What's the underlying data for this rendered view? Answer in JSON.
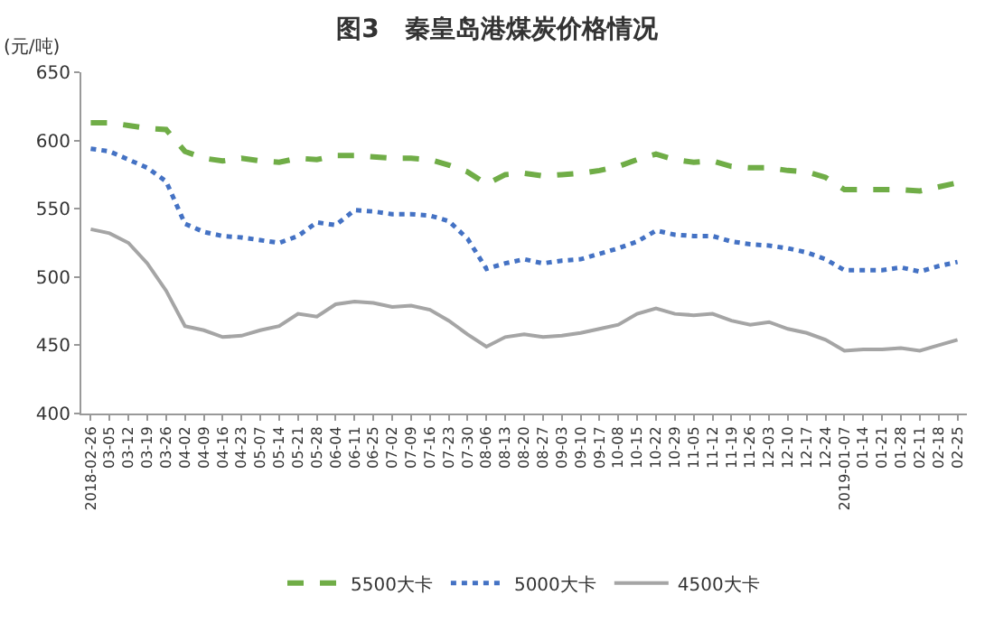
{
  "chart_data": {
    "type": "line",
    "title": "图3　秦皇岛港煤炭价格情况",
    "ylabel": "(元/吨)",
    "categories": [
      "2018-02-26",
      "03-05",
      "03-12",
      "03-19",
      "03-26",
      "04-02",
      "04-09",
      "04-16",
      "04-23",
      "05-07",
      "05-14",
      "05-21",
      "05-28",
      "06-04",
      "06-11",
      "06-25",
      "07-02",
      "07-09",
      "07-16",
      "07-23",
      "07-30",
      "08-06",
      "08-13",
      "08-20",
      "08-27",
      "09-03",
      "09-10",
      "09-17",
      "10-08",
      "10-15",
      "10-22",
      "10-29",
      "11-05",
      "11-12",
      "11-19",
      "11-26",
      "12-03",
      "12-10",
      "12-17",
      "12-24",
      "2019-01-07",
      "01-14",
      "01-21",
      "01-28",
      "02-11",
      "02-18",
      "02-25"
    ],
    "series": [
      {
        "name": "5500大卡",
        "color": "#70ad47",
        "line_style": "dashed",
        "values": [
          613,
          613,
          611,
          609,
          608,
          592,
          587,
          585,
          587,
          585,
          584,
          587,
          586,
          589,
          589,
          588,
          587,
          587,
          586,
          582,
          577,
          568,
          575,
          576,
          574,
          575,
          576,
          578,
          581,
          586,
          590,
          586,
          584,
          585,
          581,
          580,
          580,
          578,
          577,
          573,
          564,
          564,
          564,
          564,
          563,
          566,
          569
        ]
      },
      {
        "name": "5000大卡",
        "color": "#4472c4",
        "line_style": "dotted",
        "values": [
          594,
          592,
          586,
          580,
          570,
          539,
          533,
          530,
          529,
          527,
          525,
          530,
          540,
          538,
          549,
          548,
          546,
          546,
          545,
          541,
          528,
          506,
          510,
          513,
          510,
          512,
          513,
          517,
          521,
          526,
          534,
          531,
          530,
          530,
          526,
          524,
          523,
          521,
          518,
          513,
          505,
          505,
          505,
          507,
          504,
          508,
          511
        ]
      },
      {
        "name": "4500大卡",
        "color": "#a5a5a5",
        "line_style": "solid",
        "values": [
          535,
          532,
          525,
          510,
          490,
          464,
          461,
          456,
          457,
          461,
          464,
          473,
          471,
          480,
          482,
          481,
          478,
          479,
          476,
          468,
          458,
          449,
          456,
          458,
          456,
          457,
          459,
          462,
          465,
          473,
          477,
          473,
          472,
          473,
          468,
          465,
          467,
          462,
          459,
          454,
          446,
          447,
          447,
          448,
          446,
          450,
          454
        ]
      }
    ],
    "ylim": [
      400,
      650
    ],
    "yticks": [
      400,
      450,
      500,
      550,
      600,
      650
    ],
    "grid": false,
    "legend": "bottom"
  }
}
